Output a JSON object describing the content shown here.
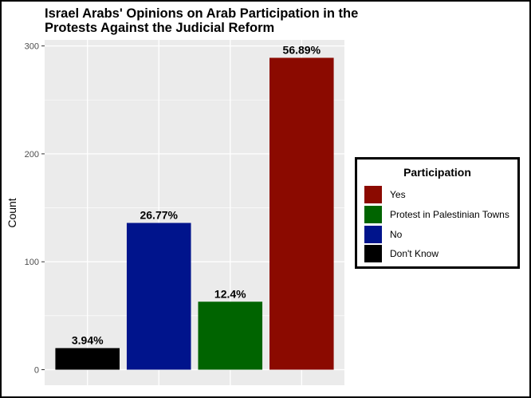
{
  "chart_data": {
    "type": "bar",
    "title_lines": [
      "Israel Arabs' Opinions on Arab Participation in the",
      "Protests Against the Judicial Reform"
    ],
    "xlabel": "",
    "ylabel": "Count",
    "ylim": [
      0,
      310
    ],
    "yticks": [
      0,
      100,
      200,
      300
    ],
    "grid": true,
    "legend_position": "right",
    "legend_title": "Participation",
    "categories": [
      "Don't Know",
      "No",
      "Protest in Palestinian Towns",
      "Yes"
    ],
    "values": [
      20,
      136,
      63,
      289
    ],
    "data_labels": [
      "3.94%",
      "26.77%",
      "12.4%",
      "56.89%"
    ],
    "colors": [
      "#000000",
      "#00148C",
      "#006400",
      "#8B0A00"
    ],
    "legend": [
      {
        "label": "Yes",
        "color": "#8B0A00"
      },
      {
        "label": "Protest in Palestinian Towns",
        "color": "#006400"
      },
      {
        "label": "No",
        "color": "#00148C"
      },
      {
        "label": "Don't Know",
        "color": "#000000"
      }
    ]
  }
}
